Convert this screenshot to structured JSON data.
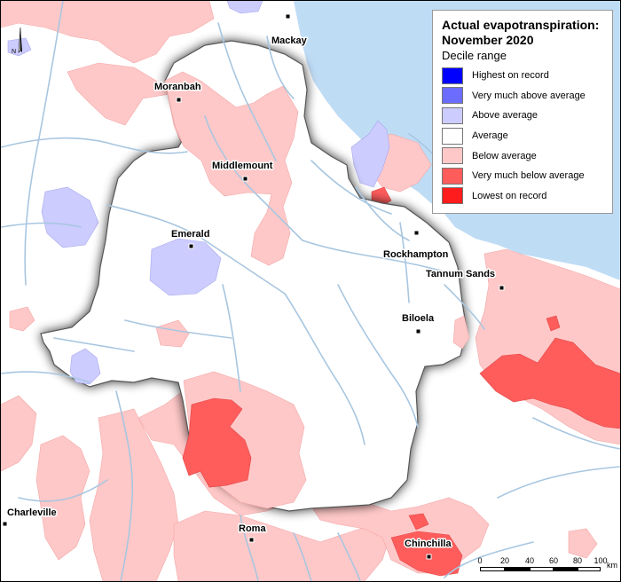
{
  "map": {
    "legend": {
      "title_line1": "Actual evapotranspiration:",
      "title_line2": "November 2020",
      "subtitle": "Decile range",
      "items": [
        {
          "label": "Highest on record",
          "color": "#0000ff"
        },
        {
          "label": "Very much above average",
          "color": "#6c6cff"
        },
        {
          "label": "Above average",
          "color": "#ccccff"
        },
        {
          "label": "Average",
          "color": "#ffffff"
        },
        {
          "label": "Below average",
          "color": "#ffc8c8"
        },
        {
          "label": "Very much below average",
          "color": "#ff5c5c"
        },
        {
          "label": "Lowest on record",
          "color": "#ff1c1c"
        }
      ]
    },
    "towns": [
      {
        "name": "Mackay"
      },
      {
        "name": "Moranbah"
      },
      {
        "name": "Middlemount"
      },
      {
        "name": "Emerald"
      },
      {
        "name": "Rockhampton"
      },
      {
        "name": "Tannum Sands"
      },
      {
        "name": "Biloela"
      },
      {
        "name": "Charleville"
      },
      {
        "name": "Roma"
      },
      {
        "name": "Chinchilla"
      }
    ],
    "north_arrow": {
      "label": "N"
    },
    "scale_bar": {
      "ticks": [
        "0",
        "20",
        "40",
        "60",
        "80",
        "100"
      ],
      "unit": "km"
    },
    "colors": {
      "sea": "#bfdcf5",
      "river": "#a8c6e0",
      "basin_border": "#444444"
    }
  }
}
